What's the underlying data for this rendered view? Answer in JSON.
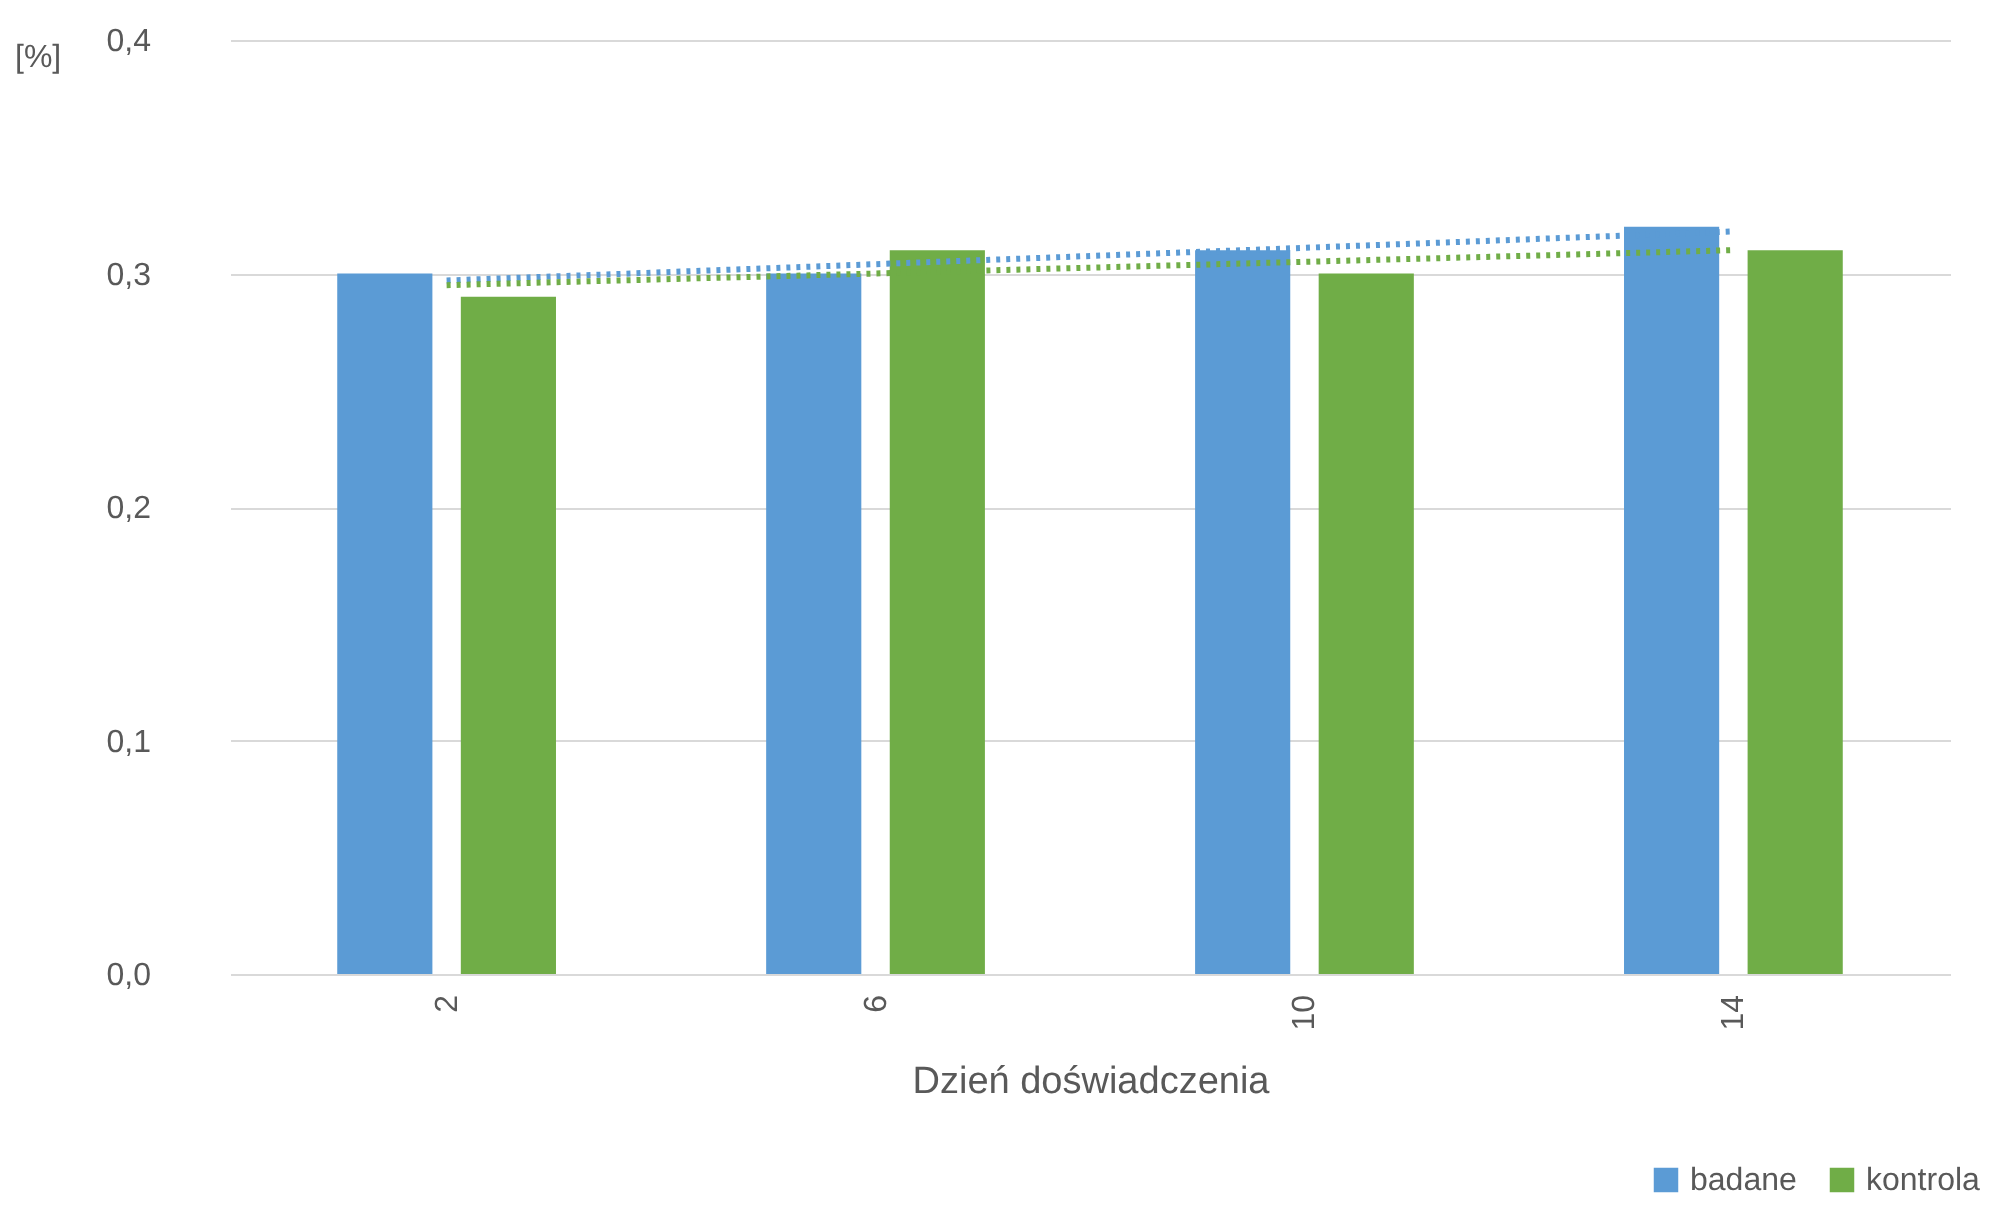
{
  "chart_data": {
    "type": "bar",
    "xlabel": "Dzień doświadczenia",
    "ylabel": "[%]",
    "categories": [
      "2",
      "6",
      "10",
      "14"
    ],
    "series": [
      {
        "name": "badane",
        "color": "#5b9bd5",
        "values": [
          0.3,
          0.3,
          0.31,
          0.32
        ]
      },
      {
        "name": "kontrola",
        "color": "#70ad47",
        "values": [
          0.29,
          0.31,
          0.3,
          0.31
        ]
      },
      {
        "type": "line",
        "color": "#5b9bd5",
        "line_style": "dotted",
        "x": [
          "2",
          "14"
        ],
        "values": [
          0.297,
          0.318
        ]
      },
      {
        "type": "line",
        "color": "#70ad47",
        "line_style": "dotted",
        "x": [
          "2",
          "14"
        ],
        "values": [
          0.295,
          0.31
        ]
      }
    ],
    "ylim": [
      0,
      0.4
    ],
    "yticks": [
      {
        "value": 0,
        "label": "0,0"
      },
      {
        "value": 0.1,
        "label": "0,1"
      },
      {
        "value": 0.2,
        "label": "0,2"
      },
      {
        "value": 0.3,
        "label": "0,3"
      },
      {
        "value": 0.4,
        "label": "0,4"
      }
    ],
    "grid": "y",
    "legend": "bottom right"
  }
}
